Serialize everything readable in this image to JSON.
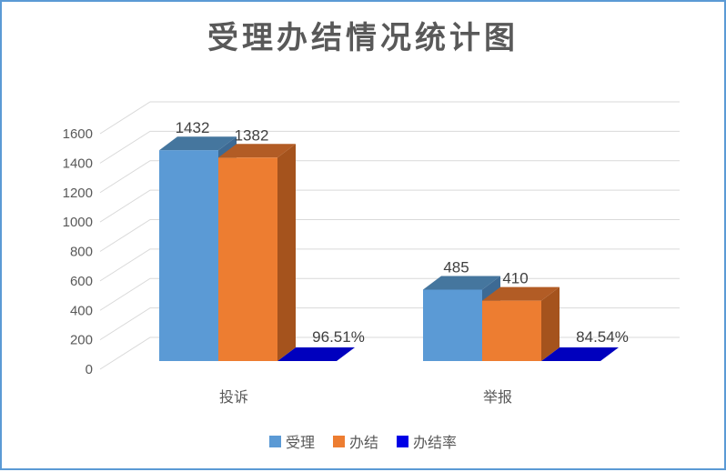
{
  "title": "受理办结情况统计图",
  "frame": {
    "border_color": "#5B9AD5",
    "background": "#FFFFFF"
  },
  "chart_data": {
    "type": "bar",
    "subtype": "3d-clustered-column",
    "title": "受理办结情况统计图",
    "categories": [
      "投诉",
      "举报"
    ],
    "series": [
      {
        "name": "受理",
        "values": [
          1432,
          485
        ],
        "data_labels": [
          "1432",
          "485"
        ],
        "color": "#5B9AD5",
        "color_top": "#45769E",
        "color_side": "#3D6A94",
        "legend_color": "#5B9AD5"
      },
      {
        "name": "办结",
        "values": [
          1382,
          410
        ],
        "data_labels": [
          "1382",
          "410"
        ],
        "color": "#ED7D31",
        "color_top": "#B25C25",
        "color_side": "#A5531D",
        "legend_color": "#ED7D31"
      },
      {
        "name": "办结率",
        "values": [
          0.9651,
          0.8454
        ],
        "values_percent": [
          96.51,
          84.54
        ],
        "data_labels": [
          "96.51%",
          "84.54%"
        ],
        "color": "#0000BE",
        "color_top": "#0000BE",
        "color_side": "#0000A8",
        "legend_color": "#0000E6"
      }
    ],
    "xlabel": "",
    "ylabel": "",
    "y_axis": {
      "min": 0,
      "max": 1600,
      "step": 200,
      "tick_labels": [
        "0",
        "200",
        "400",
        "600",
        "800",
        "1000",
        "1200",
        "1400",
        "1600"
      ]
    },
    "grid": true,
    "gridline_color": "#D9D9D9",
    "legend_position": "bottom",
    "text_colors": {
      "axis": "#595959",
      "category": "#595959",
      "data_label": "#404040",
      "title": "#595959"
    }
  }
}
